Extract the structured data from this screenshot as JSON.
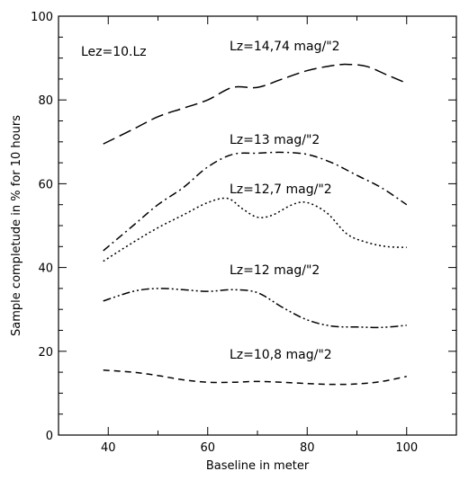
{
  "chart_data": {
    "type": "line",
    "title": "",
    "xlabel": "Baseline in meter",
    "ylabel": "Sample completude in % for 10 hours",
    "xlim": [
      30,
      110
    ],
    "ylim": [
      0,
      100
    ],
    "xticks": [
      40,
      60,
      80,
      100
    ],
    "yticks": [
      0,
      20,
      40,
      60,
      80,
      100
    ],
    "grid": false,
    "legend": "inline labels",
    "annotation": "Lez=10.Lz",
    "series": [
      {
        "name": "Lz=14,74 mag/\"2",
        "dash": "long-dash",
        "x": [
          39,
          45,
          50,
          55,
          60,
          65,
          70,
          75,
          80,
          85,
          88,
          92,
          96,
          100
        ],
        "y": [
          69.5,
          73,
          76,
          78,
          80,
          83,
          83,
          85,
          87,
          88.2,
          88.5,
          88,
          86,
          84
        ]
      },
      {
        "name": "Lz=13 mag/\"2",
        "dash": "dash-dot",
        "x": [
          39,
          45,
          50,
          55,
          60,
          65,
          70,
          75,
          80,
          85,
          90,
          95,
          100
        ],
        "y": [
          44,
          50,
          55,
          59,
          64,
          67,
          67.3,
          67.5,
          67,
          65,
          62,
          59,
          55
        ]
      },
      {
        "name": "Lz=12,7 mag/\"2",
        "dash": "dotted",
        "x": [
          39,
          45,
          50,
          55,
          60,
          64,
          67,
          70,
          73,
          77,
          80,
          84,
          88,
          92,
          96,
          100
        ],
        "y": [
          41.5,
          46,
          49.5,
          52.5,
          55.5,
          56.5,
          54,
          52,
          52.5,
          55,
          55.5,
          53,
          48,
          46,
          45,
          44.8
        ]
      },
      {
        "name": "Lz=12 mag/\"2",
        "dash": "dash-dot-dot",
        "x": [
          39,
          45,
          50,
          55,
          60,
          65,
          70,
          75,
          80,
          85,
          90,
          95,
          100
        ],
        "y": [
          32,
          34.3,
          35,
          34.7,
          34.3,
          34.7,
          34,
          30.5,
          27.5,
          26,
          25.8,
          25.7,
          26.2
        ]
      },
      {
        "name": "Lz=10,8 mag/\"2",
        "dash": "short-dash",
        "x": [
          39,
          45,
          50,
          55,
          60,
          65,
          70,
          75,
          80,
          85,
          90,
          95,
          100
        ],
        "y": [
          15.5,
          15,
          14.2,
          13.2,
          12.6,
          12.6,
          12.8,
          12.6,
          12.3,
          12.1,
          12.2,
          12.8,
          14
        ]
      }
    ]
  }
}
